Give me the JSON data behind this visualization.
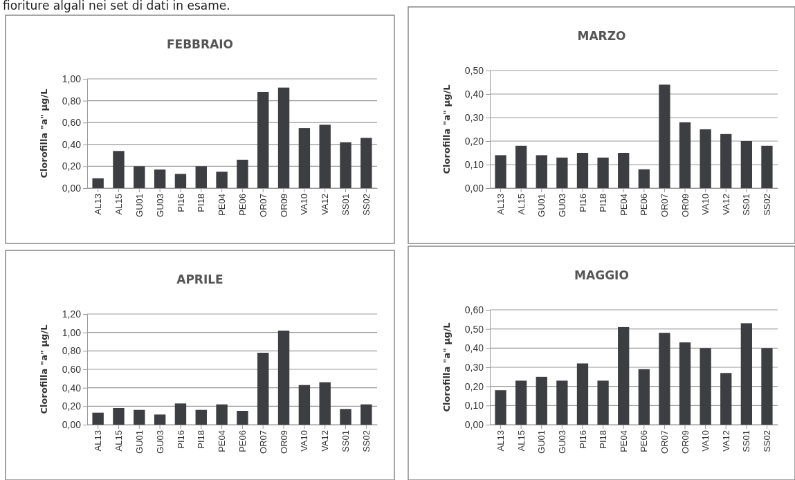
{
  "chart_data": [
    {
      "type": "bar",
      "title": "FEBBRAIO",
      "ylabel": "Clorofilla \"a\" µg/L",
      "annotations": [
        "fioriture algali nei set di dati in esame."
      ],
      "categories": [
        "AL13",
        "AL15",
        "GU01",
        "GU03",
        "PI16",
        "PI18",
        "PE04",
        "PE06",
        "OR07",
        "OR09",
        "VA10",
        "VA12",
        "SS01",
        "SS02"
      ],
      "values": [
        0.09,
        0.34,
        0.2,
        0.17,
        0.13,
        0.2,
        0.15,
        0.26,
        0.88,
        0.92,
        0.55,
        0.58,
        0.42,
        0.46
      ],
      "color": "#3d3e42",
      "ylim": [
        0,
        1
      ],
      "yticks": [
        {
          "value": 0,
          "label": "0,00"
        },
        {
          "value": 0.2,
          "label": "0,20"
        },
        {
          "value": 0.4,
          "label": "0,40"
        },
        {
          "value": 0.6,
          "label": "0,60"
        },
        {
          "value": 0.8,
          "label": "0,80"
        },
        {
          "value": 1,
          "label": "1,00"
        }
      ],
      "grid": "y"
    },
    {
      "type": "bar",
      "title": "MARZO",
      "ylabel": "Clorofilla \"a\" µg/L",
      "categories": [
        "AL13",
        "AL15",
        "GU01",
        "GU03",
        "PI16",
        "PI18",
        "PE04",
        "PE06",
        "OR07",
        "OR09",
        "VA10",
        "VA12",
        "SS01",
        "SS02"
      ],
      "values": [
        0.14,
        0.18,
        0.14,
        0.13,
        0.15,
        0.13,
        0.15,
        0.08,
        0.44,
        0.28,
        0.25,
        0.23,
        0.2,
        0.18
      ],
      "color": "#3d3e42",
      "ylim": [
        0,
        0.5
      ],
      "yticks": [
        {
          "value": 0,
          "label": "0,00"
        },
        {
          "value": 0.1,
          "label": "0,10"
        },
        {
          "value": 0.2,
          "label": "0,20"
        },
        {
          "value": 0.3,
          "label": "0,30"
        },
        {
          "value": 0.4,
          "label": "0,40"
        },
        {
          "value": 0.5,
          "label": "0,50"
        }
      ],
      "grid": "y"
    },
    {
      "type": "bar",
      "title": "APRILE",
      "ylabel": "Clorofilla \"a\" µg/L",
      "categories": [
        "AL13",
        "AL15",
        "GU01",
        "GU03",
        "PI16",
        "PI18",
        "PE04",
        "PE06",
        "OR07",
        "OR09",
        "VA10",
        "VA12",
        "SS01",
        "SS02"
      ],
      "values": [
        0.13,
        0.18,
        0.16,
        0.11,
        0.23,
        0.16,
        0.22,
        0.15,
        0.78,
        1.02,
        0.43,
        0.46,
        0.17,
        0.22
      ],
      "color": "#3d3e42",
      "ylim": [
        0,
        1.2
      ],
      "yticks": [
        {
          "value": 0,
          "label": "0,00"
        },
        {
          "value": 0.2,
          "label": "0,20"
        },
        {
          "value": 0.4,
          "label": "0,40"
        },
        {
          "value": 0.6,
          "label": "0,60"
        },
        {
          "value": 0.8,
          "label": "0,80"
        },
        {
          "value": 1,
          "label": "1,00"
        },
        {
          "value": 1.2,
          "label": "1,20"
        }
      ],
      "grid": "y"
    },
    {
      "type": "bar",
      "title": "MAGGIO",
      "ylabel": "Clorofilla \"a\" µg/L",
      "categories": [
        "AL13",
        "AL15",
        "GU01",
        "GU03",
        "PI16",
        "PI18",
        "PE04",
        "PE06",
        "OR07",
        "OR09",
        "VA10",
        "VA12",
        "SS01",
        "SS02"
      ],
      "values": [
        0.18,
        0.23,
        0.25,
        0.23,
        0.32,
        0.23,
        0.51,
        0.29,
        0.48,
        0.43,
        0.4,
        0.27,
        0.53,
        0.4
      ],
      "color": "#3d3e42",
      "ylim": [
        0,
        0.6
      ],
      "yticks": [
        {
          "value": 0,
          "label": "0,00"
        },
        {
          "value": 0.1,
          "label": "0,10"
        },
        {
          "value": 0.2,
          "label": "0,20"
        },
        {
          "value": 0.3,
          "label": "0,30"
        },
        {
          "value": 0.4,
          "label": "0,40"
        },
        {
          "value": 0.5,
          "label": "0,50"
        },
        {
          "value": 0.6,
          "label": "0,60"
        }
      ],
      "grid": "y"
    }
  ]
}
